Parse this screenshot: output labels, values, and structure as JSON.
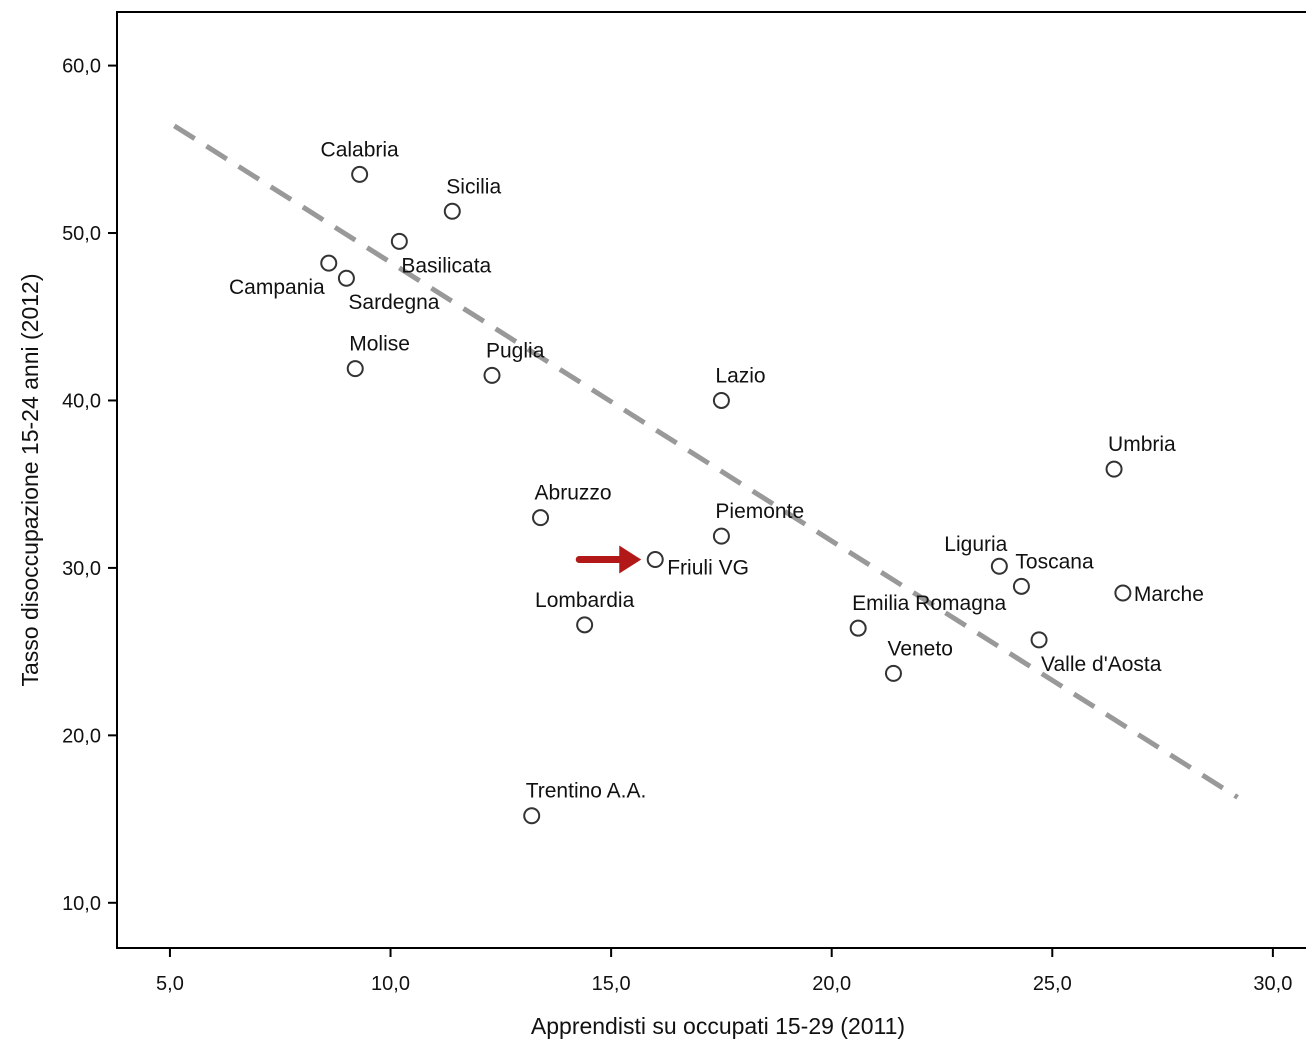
{
  "chart_data": {
    "type": "scatter",
    "xlabel": "Apprendisti su occupati 15-29 (2011)",
    "ylabel": "Tasso disoccupazione 15-24 anni (2012)",
    "xlim": [
      3.8,
      31.0
    ],
    "ylim": [
      7.3,
      63.2
    ],
    "x_ticks": [
      5,
      10,
      15,
      20,
      25,
      30
    ],
    "x_tick_labels": [
      "5,0",
      "10,0",
      "15,0",
      "20,0",
      "25,0",
      "30,0"
    ],
    "y_ticks": [
      10,
      20,
      30,
      40,
      50,
      60
    ],
    "y_tick_labels": [
      "10,0",
      "20,0",
      "30,0",
      "40,0",
      "50,0",
      "60,0"
    ],
    "grid": false,
    "points": [
      {
        "label": "Calabria",
        "x": 9.3,
        "y": 53.5,
        "label_pos": "above"
      },
      {
        "label": "Sicilia",
        "x": 11.4,
        "y": 51.3,
        "label_pos": "above-right"
      },
      {
        "label": "Basilicata",
        "x": 10.2,
        "y": 49.5,
        "label_pos": "below-right"
      },
      {
        "label": "Campania",
        "x": 8.6,
        "y": 48.2,
        "label_pos": "below-left"
      },
      {
        "label": "Sardegna",
        "x": 9.0,
        "y": 47.3,
        "label_pos": "below-right"
      },
      {
        "label": "Molise",
        "x": 9.2,
        "y": 41.9,
        "label_pos": "above-right"
      },
      {
        "label": "Puglia",
        "x": 12.3,
        "y": 41.5,
        "label_pos": "above-right"
      },
      {
        "label": "Lazio",
        "x": 17.5,
        "y": 40.0,
        "label_pos": "above-right"
      },
      {
        "label": "Umbria",
        "x": 26.4,
        "y": 35.9,
        "label_pos": "above-right"
      },
      {
        "label": "Abruzzo",
        "x": 13.4,
        "y": 33.0,
        "label_pos": "above-right"
      },
      {
        "label": "Piemonte",
        "x": 17.5,
        "y": 31.9,
        "label_pos": "above-right"
      },
      {
        "label": "Friuli VG",
        "x": 16.0,
        "y": 30.5,
        "label_pos": "right-below"
      },
      {
        "label": "Liguria",
        "x": 23.8,
        "y": 30.1,
        "label_pos": "above-left"
      },
      {
        "label": "Toscana",
        "x": 24.3,
        "y": 28.9,
        "label_pos": "above-right"
      },
      {
        "label": "Marche",
        "x": 26.6,
        "y": 28.5,
        "label_pos": "right"
      },
      {
        "label": "Lombardia",
        "x": 14.4,
        "y": 26.6,
        "label_pos": "above"
      },
      {
        "label": "Emilia Romagna",
        "x": 20.6,
        "y": 26.4,
        "label_pos": "above-right"
      },
      {
        "label": "Valle d'Aosta",
        "x": 24.7,
        "y": 25.7,
        "label_pos": "below-right"
      },
      {
        "label": "Veneto",
        "x": 21.4,
        "y": 23.7,
        "label_pos": "above-right"
      },
      {
        "label": "Trentino A.A.",
        "x": 13.2,
        "y": 15.2,
        "label_pos": "above-right"
      }
    ],
    "trend_line": {
      "style": "dashed",
      "color": "#999999",
      "x": [
        5.1,
        29.2
      ],
      "y": [
        56.4,
        16.3
      ]
    },
    "highlight": {
      "target": "Friuli VG",
      "marker": "arrow",
      "color": "#b21818"
    },
    "marker": "hollow-circle",
    "colors": {
      "points": "#333333",
      "axes": "#000000",
      "text": "#111111"
    }
  }
}
